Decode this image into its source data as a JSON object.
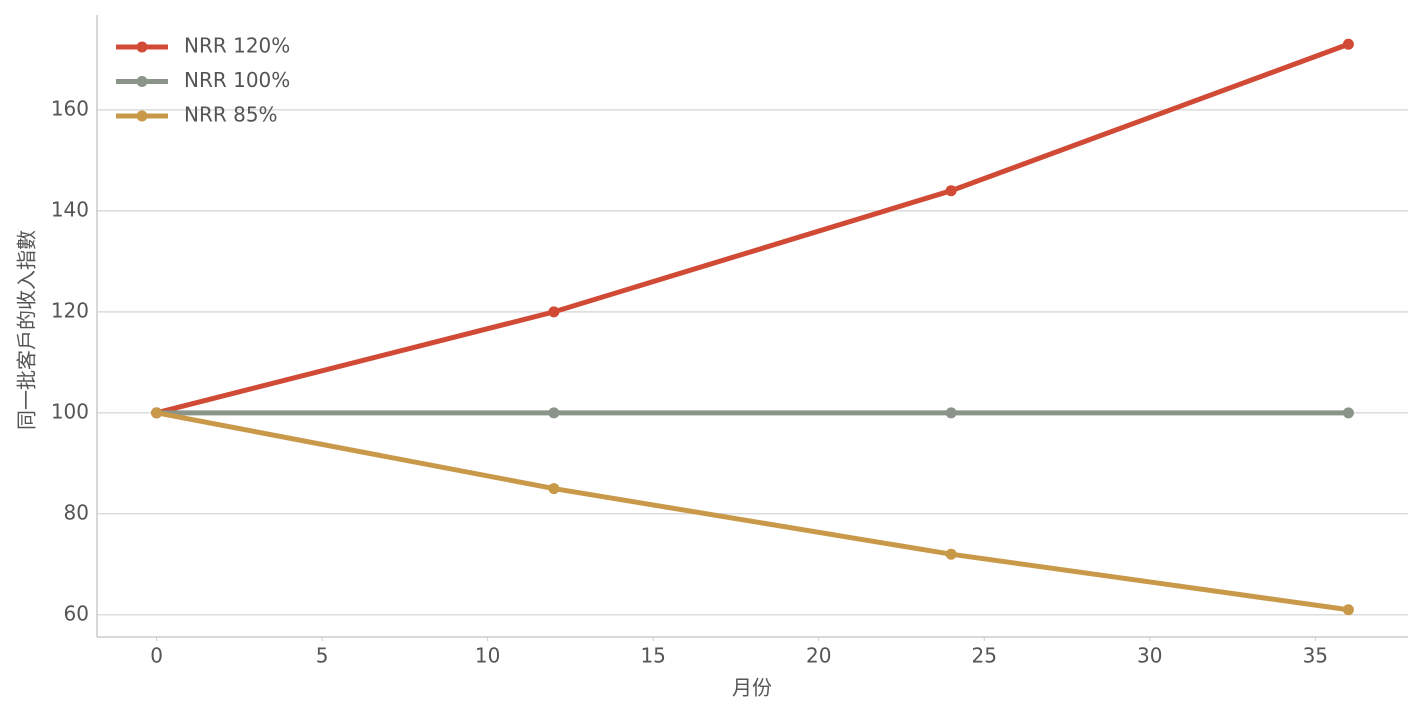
{
  "chart_data": {
    "type": "line",
    "x_label": "月份",
    "y_label": "同一批客戶的收入指數",
    "x": [
      0,
      12,
      24,
      36
    ],
    "series": [
      {
        "name": "NRR 120%",
        "color": "#d04a35",
        "values": [
          100,
          120,
          144,
          173
        ]
      },
      {
        "name": "NRR 100%",
        "color": "#8a9488",
        "values": [
          100,
          100,
          100,
          100
        ]
      },
      {
        "name": "NRR 85%",
        "color": "#c9994a",
        "values": [
          100,
          85,
          72,
          61
        ]
      }
    ],
    "xlim": [
      -1.8,
      37.8
    ],
    "xticks": [
      0,
      5,
      10,
      15,
      20,
      25,
      30,
      35
    ],
    "ylim": [
      55.6,
      178.8
    ],
    "yticks": [
      60,
      80,
      100,
      120,
      140,
      160
    ],
    "grid": "y",
    "legend": "upper left",
    "markers": true
  }
}
